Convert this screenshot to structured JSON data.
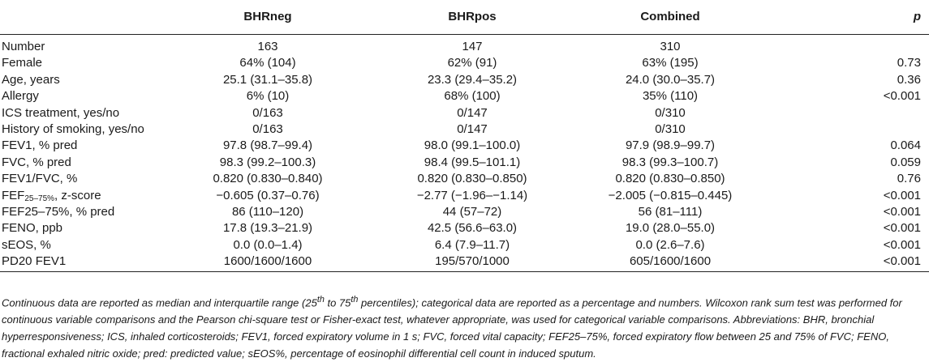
{
  "table": {
    "headers": [
      "",
      "BHRneg",
      "BHRpos",
      "Combined",
      "p"
    ],
    "rows": [
      {
        "label": "Number",
        "bhrneg": "163",
        "bhrpos": "147",
        "combined": "310",
        "p": ""
      },
      {
        "label": "Female",
        "bhrneg": "64% (104)",
        "bhrpos": "62% (91)",
        "combined": "63% (195)",
        "p": "0.73"
      },
      {
        "label": "Age, years",
        "bhrneg": "25.1 (31.1–35.8)",
        "bhrpos": "23.3 (29.4–35.2)",
        "combined": "24.0 (30.0–35.7)",
        "p": "0.36"
      },
      {
        "label": "Allergy",
        "bhrneg": "6% (10)",
        "bhrpos": "68% (100)",
        "combined": "35% (110)",
        "p": "<0.001"
      },
      {
        "label": "ICS treatment, yes/no",
        "bhrneg": "0/163",
        "bhrpos": "0/147",
        "combined": "0/310",
        "p": ""
      },
      {
        "label": "History of smoking, yes/no",
        "bhrneg": "0/163",
        "bhrpos": "0/147",
        "combined": "0/310",
        "p": ""
      },
      {
        "label": "FEV1, % pred",
        "bhrneg": "97.8 (98.7–99.4)",
        "bhrpos": "98.0 (99.1–100.0)",
        "combined": "97.9 (98.9–99.7)",
        "p": "0.064"
      },
      {
        "label": "FVC, % pred",
        "bhrneg": "98.3 (99.2–100.3)",
        "bhrpos": "98.4 (99.5–101.1)",
        "combined": "98.3 (99.3–100.7)",
        "p": "0.059"
      },
      {
        "label": "FEV1/FVC, %",
        "bhrneg": "0.820 (0.830–0.840)",
        "bhrpos": "0.820 (0.830–0.850)",
        "combined": "0.820 (0.830–0.850)",
        "p": "0.76"
      },
      {
        "label_main": "FEF",
        "label_sub": "25–75%",
        "label_tail": ", z-score",
        "bhrneg": "−0.605 (0.37–0.76)",
        "bhrpos": "−2.77 (−1.96–−1.14)",
        "combined": "−2.005 (−0.815–0.445)",
        "p": "<0.001"
      },
      {
        "label": "FEF25–75%, % pred",
        "bhrneg": "86 (110–120)",
        "bhrpos": "44 (57–72)",
        "combined": "56 (81–111)",
        "p": "<0.001"
      },
      {
        "label": "FENO, ppb",
        "bhrneg": "17.8 (19.3–21.9)",
        "bhrpos": "42.5 (56.6–63.0)",
        "combined": "19.0 (28.0–55.0)",
        "p": "<0.001"
      },
      {
        "label": "sEOS, %",
        "bhrneg": "0.0 (0.0–1.4)",
        "bhrpos": "6.4 (7.9–11.7)",
        "combined": "0.0 (2.6–7.6)",
        "p": "<0.001"
      },
      {
        "label": "PD20 FEV1",
        "bhrneg": "1600/1600/1600",
        "bhrpos": "195/570/1000",
        "combined": "605/1600/1600",
        "p": "<0.001"
      }
    ]
  },
  "footnote": {
    "part1": "Continuous data are reported as median and interquartile range (25",
    "sup1": "th",
    "part2": " to 75",
    "sup2": "th",
    "part3": " percentiles); categorical data are reported as a percentage and numbers. Wilcoxon rank sum test was performed for continuous variable comparisons and the Pearson chi-square test or Fisher-exact test, whatever appropriate, was used for categorical variable comparisons. Abbreviations: BHR, bronchial hyperresponsiveness; ICS, inhaled corticosteroids; FEV1, forced expiratory volume in 1 s; FVC, forced vital capacity; FEF25–75%, forced expiratory flow between 25 and 75% of FVC; FENO, fractional exhaled nitric oxide; pred: predicted value; sEOS%, percentage of eosinophil differential cell count in induced sputum."
  }
}
